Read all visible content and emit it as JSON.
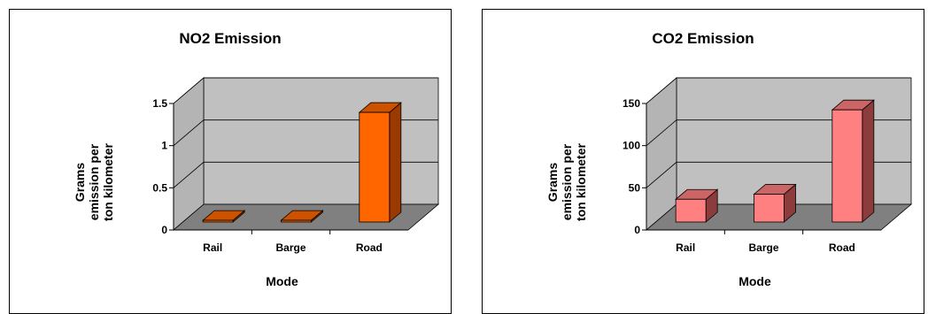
{
  "chart_data": [
    {
      "type": "bar",
      "title": "NO2 Emission",
      "xlabel": "Mode",
      "ylabel": [
        "Grams",
        "emission per",
        "ton kilometer"
      ],
      "categories": [
        "Rail",
        "Barge",
        "Road"
      ],
      "values": [
        0.02,
        0.02,
        1.3
      ],
      "ylim": [
        0,
        1.5
      ],
      "yticks": [
        0,
        0.5,
        1,
        1.5
      ],
      "ytick_labels": [
        "0",
        "0.5",
        "1",
        "1.5"
      ],
      "grid": true,
      "colors": {
        "front": "#ff6600",
        "top": "#cc5200",
        "side": "#9a3a00"
      }
    },
    {
      "type": "bar",
      "title": "CO2 Emission",
      "xlabel": "Mode",
      "ylabel": [
        "Grams",
        "emission per",
        "ton kilometer"
      ],
      "categories": [
        "Rail",
        "Barge",
        "Road"
      ],
      "values": [
        27,
        33,
        133
      ],
      "ylim": [
        0,
        150
      ],
      "yticks": [
        0,
        50,
        100,
        150
      ],
      "ytick_labels": [
        "0",
        "50",
        "100",
        "150"
      ],
      "grid": true,
      "colors": {
        "front": "#ff8080",
        "top": "#cc6666",
        "side": "#8c3c3c"
      }
    }
  ]
}
